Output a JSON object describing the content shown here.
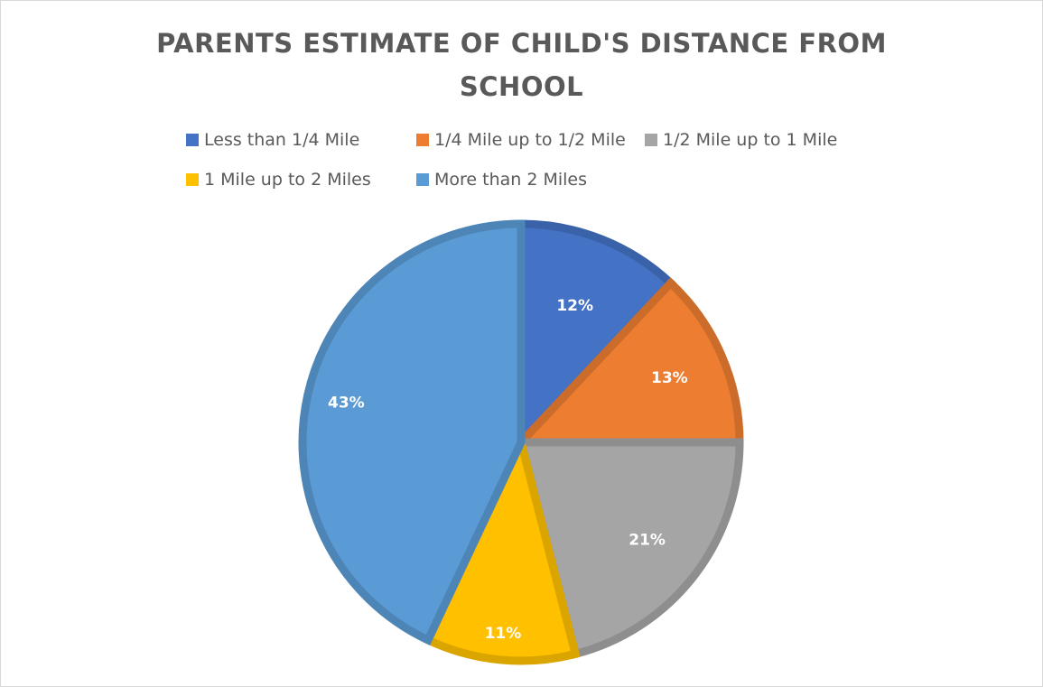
{
  "chart_data": {
    "type": "pie",
    "title": "PARENTS ESTIMATE OF CHILD'S DISTANCE FROM SCHOOL",
    "title_lines": [
      "PARENTS ESTIMATE OF CHILD'S DISTANCE FROM",
      "SCHOOL"
    ],
    "categories": [
      "Less than 1/4 Mile",
      "1/4 Mile up to 1/2 Mile",
      "1/2 Mile up to 1 Mile",
      "1 Mile up to 2 Miles",
      "More than 2 Miles"
    ],
    "values": [
      12,
      13,
      21,
      11,
      43
    ],
    "labels": [
      "12%",
      "13%",
      "21%",
      "11%",
      "43%"
    ],
    "colors": [
      "#4472c4",
      "#ed7d31",
      "#a5a5a5",
      "#ffc000",
      "#5b9bd5"
    ],
    "legend_position": "top"
  }
}
